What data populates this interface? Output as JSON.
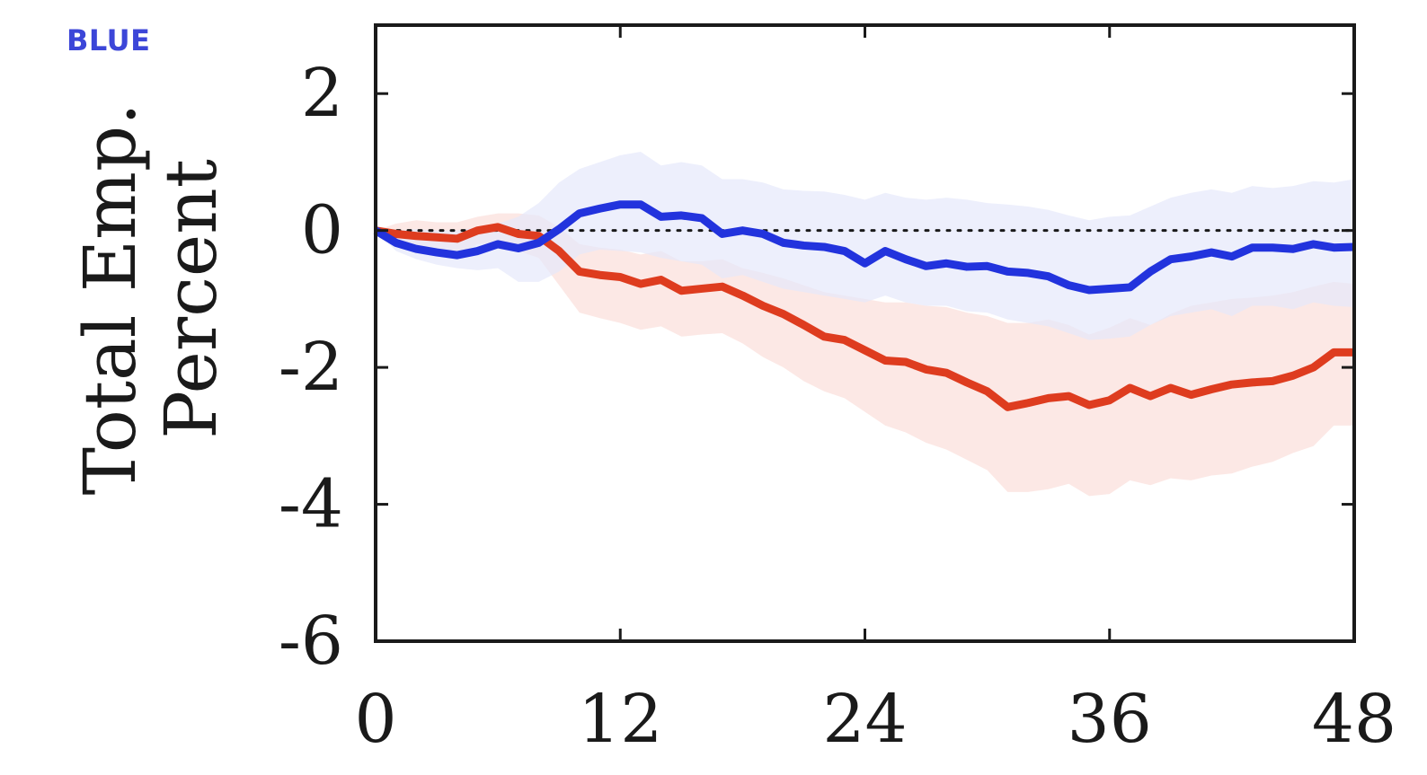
{
  "corner_label": "BLUE",
  "colors": {
    "blue_line": "#2233dd",
    "blue_band": "#e6e8fb",
    "red_line": "#de3c1f",
    "red_band": "#fce4e0",
    "axis": "#1a1a1a"
  },
  "chart_data": {
    "type": "line",
    "ylabel_lines": [
      "Total Emp.",
      "Percent"
    ],
    "xlabel": "",
    "xlim": [
      0,
      48
    ],
    "ylim": [
      -6,
      3
    ],
    "xticks": [
      0,
      12,
      24,
      36,
      48
    ],
    "yticks": [
      -6,
      -4,
      -2,
      0,
      2
    ],
    "zero_line": {
      "style": "dotted",
      "y": 0
    },
    "grid": false,
    "legend": "none",
    "x": [
      0,
      1,
      2,
      3,
      4,
      5,
      6,
      7,
      8,
      9,
      10,
      11,
      12,
      13,
      14,
      15,
      16,
      17,
      18,
      19,
      20,
      21,
      22,
      23,
      24,
      25,
      26,
      27,
      28,
      29,
      30,
      31,
      32,
      33,
      34,
      35,
      36,
      37,
      38,
      39,
      40,
      41,
      42,
      43,
      44,
      45,
      46,
      47,
      48
    ],
    "series": [
      {
        "color_key": "blue",
        "values": [
          0,
          -0.18,
          -0.27,
          -0.32,
          -0.36,
          -0.3,
          -0.2,
          -0.26,
          -0.18,
          0.02,
          0.25,
          0.32,
          0.38,
          0.38,
          0.2,
          0.22,
          0.18,
          -0.05,
          0,
          -0.05,
          -0.18,
          -0.22,
          -0.24,
          -0.3,
          -0.48,
          -0.3,
          -0.42,
          -0.52,
          -0.48,
          -0.53,
          -0.52,
          -0.6,
          -0.62,
          -0.67,
          -0.8,
          -0.87,
          -0.85,
          -0.83,
          -0.6,
          -0.42,
          -0.38,
          -0.32,
          -0.38,
          -0.25,
          -0.25,
          -0.27,
          -0.2,
          -0.25,
          -0.24
        ],
        "band_upper": [
          0,
          0.0,
          0.02,
          0.0,
          0.0,
          0.05,
          0.1,
          0.2,
          0.4,
          0.7,
          0.9,
          1.0,
          1.1,
          1.15,
          0.95,
          1.0,
          0.95,
          0.75,
          0.75,
          0.7,
          0.6,
          0.58,
          0.57,
          0.52,
          0.45,
          0.55,
          0.48,
          0.45,
          0.48,
          0.45,
          0.4,
          0.38,
          0.35,
          0.3,
          0.22,
          0.15,
          0.2,
          0.22,
          0.35,
          0.48,
          0.55,
          0.6,
          0.55,
          0.65,
          0.62,
          0.65,
          0.72,
          0.7,
          0.75
        ],
        "band_lower": [
          0,
          -0.3,
          -0.42,
          -0.5,
          -0.55,
          -0.58,
          -0.55,
          -0.75,
          -0.75,
          -0.6,
          -0.35,
          -0.28,
          -0.3,
          -0.32,
          -0.4,
          -0.45,
          -0.5,
          -0.7,
          -0.65,
          -0.75,
          -0.85,
          -0.9,
          -0.95,
          -1.0,
          -1.05,
          -0.95,
          -1.05,
          -1.1,
          -1.1,
          -1.18,
          -1.2,
          -1.3,
          -1.35,
          -1.4,
          -1.5,
          -1.6,
          -1.58,
          -1.55,
          -1.38,
          -1.25,
          -1.2,
          -1.15,
          -1.25,
          -1.1,
          -1.1,
          -1.15,
          -1.05,
          -1.1,
          -1.12
        ]
      },
      {
        "color_key": "red",
        "values": [
          0,
          -0.05,
          -0.08,
          -0.1,
          -0.12,
          0,
          0.05,
          -0.05,
          -0.08,
          -0.3,
          -0.6,
          -0.65,
          -0.68,
          -0.78,
          -0.72,
          -0.88,
          -0.85,
          -0.82,
          -0.95,
          -1.1,
          -1.22,
          -1.38,
          -1.55,
          -1.6,
          -1.75,
          -1.9,
          -1.92,
          -2.03,
          -2.08,
          -2.22,
          -2.35,
          -2.58,
          -2.52,
          -2.45,
          -2.42,
          -2.55,
          -2.48,
          -2.3,
          -2.42,
          -2.3,
          -2.4,
          -2.32,
          -2.25,
          -2.22,
          -2.2,
          -2.12,
          -2.0,
          -1.78,
          -1.78
        ],
        "band_upper": [
          0,
          0.1,
          0.15,
          0.12,
          0.12,
          0.2,
          0.25,
          0.25,
          0.22,
          0.05,
          -0.2,
          -0.25,
          -0.28,
          -0.35,
          -0.3,
          -0.45,
          -0.45,
          -0.42,
          -0.55,
          -0.62,
          -0.7,
          -0.8,
          -0.9,
          -0.95,
          -1.0,
          -1.05,
          -1.05,
          -1.1,
          -1.12,
          -1.2,
          -1.25,
          -1.35,
          -1.35,
          -1.3,
          -1.38,
          -1.52,
          -1.42,
          -1.28,
          -1.38,
          -1.22,
          -1.1,
          -1.05,
          -1.0,
          -0.98,
          -0.95,
          -0.9,
          -0.82,
          -0.75,
          -0.78
        ],
        "band_lower": [
          0,
          -0.2,
          -0.3,
          -0.32,
          -0.36,
          -0.2,
          -0.18,
          -0.3,
          -0.4,
          -0.8,
          -1.2,
          -1.28,
          -1.35,
          -1.45,
          -1.4,
          -1.55,
          -1.52,
          -1.5,
          -1.65,
          -1.85,
          -2.0,
          -2.2,
          -2.35,
          -2.45,
          -2.65,
          -2.85,
          -2.95,
          -3.1,
          -3.2,
          -3.35,
          -3.5,
          -3.82,
          -3.82,
          -3.78,
          -3.7,
          -3.88,
          -3.85,
          -3.65,
          -3.72,
          -3.62,
          -3.65,
          -3.58,
          -3.55,
          -3.45,
          -3.38,
          -3.25,
          -3.15,
          -2.85,
          -2.85
        ]
      }
    ]
  }
}
